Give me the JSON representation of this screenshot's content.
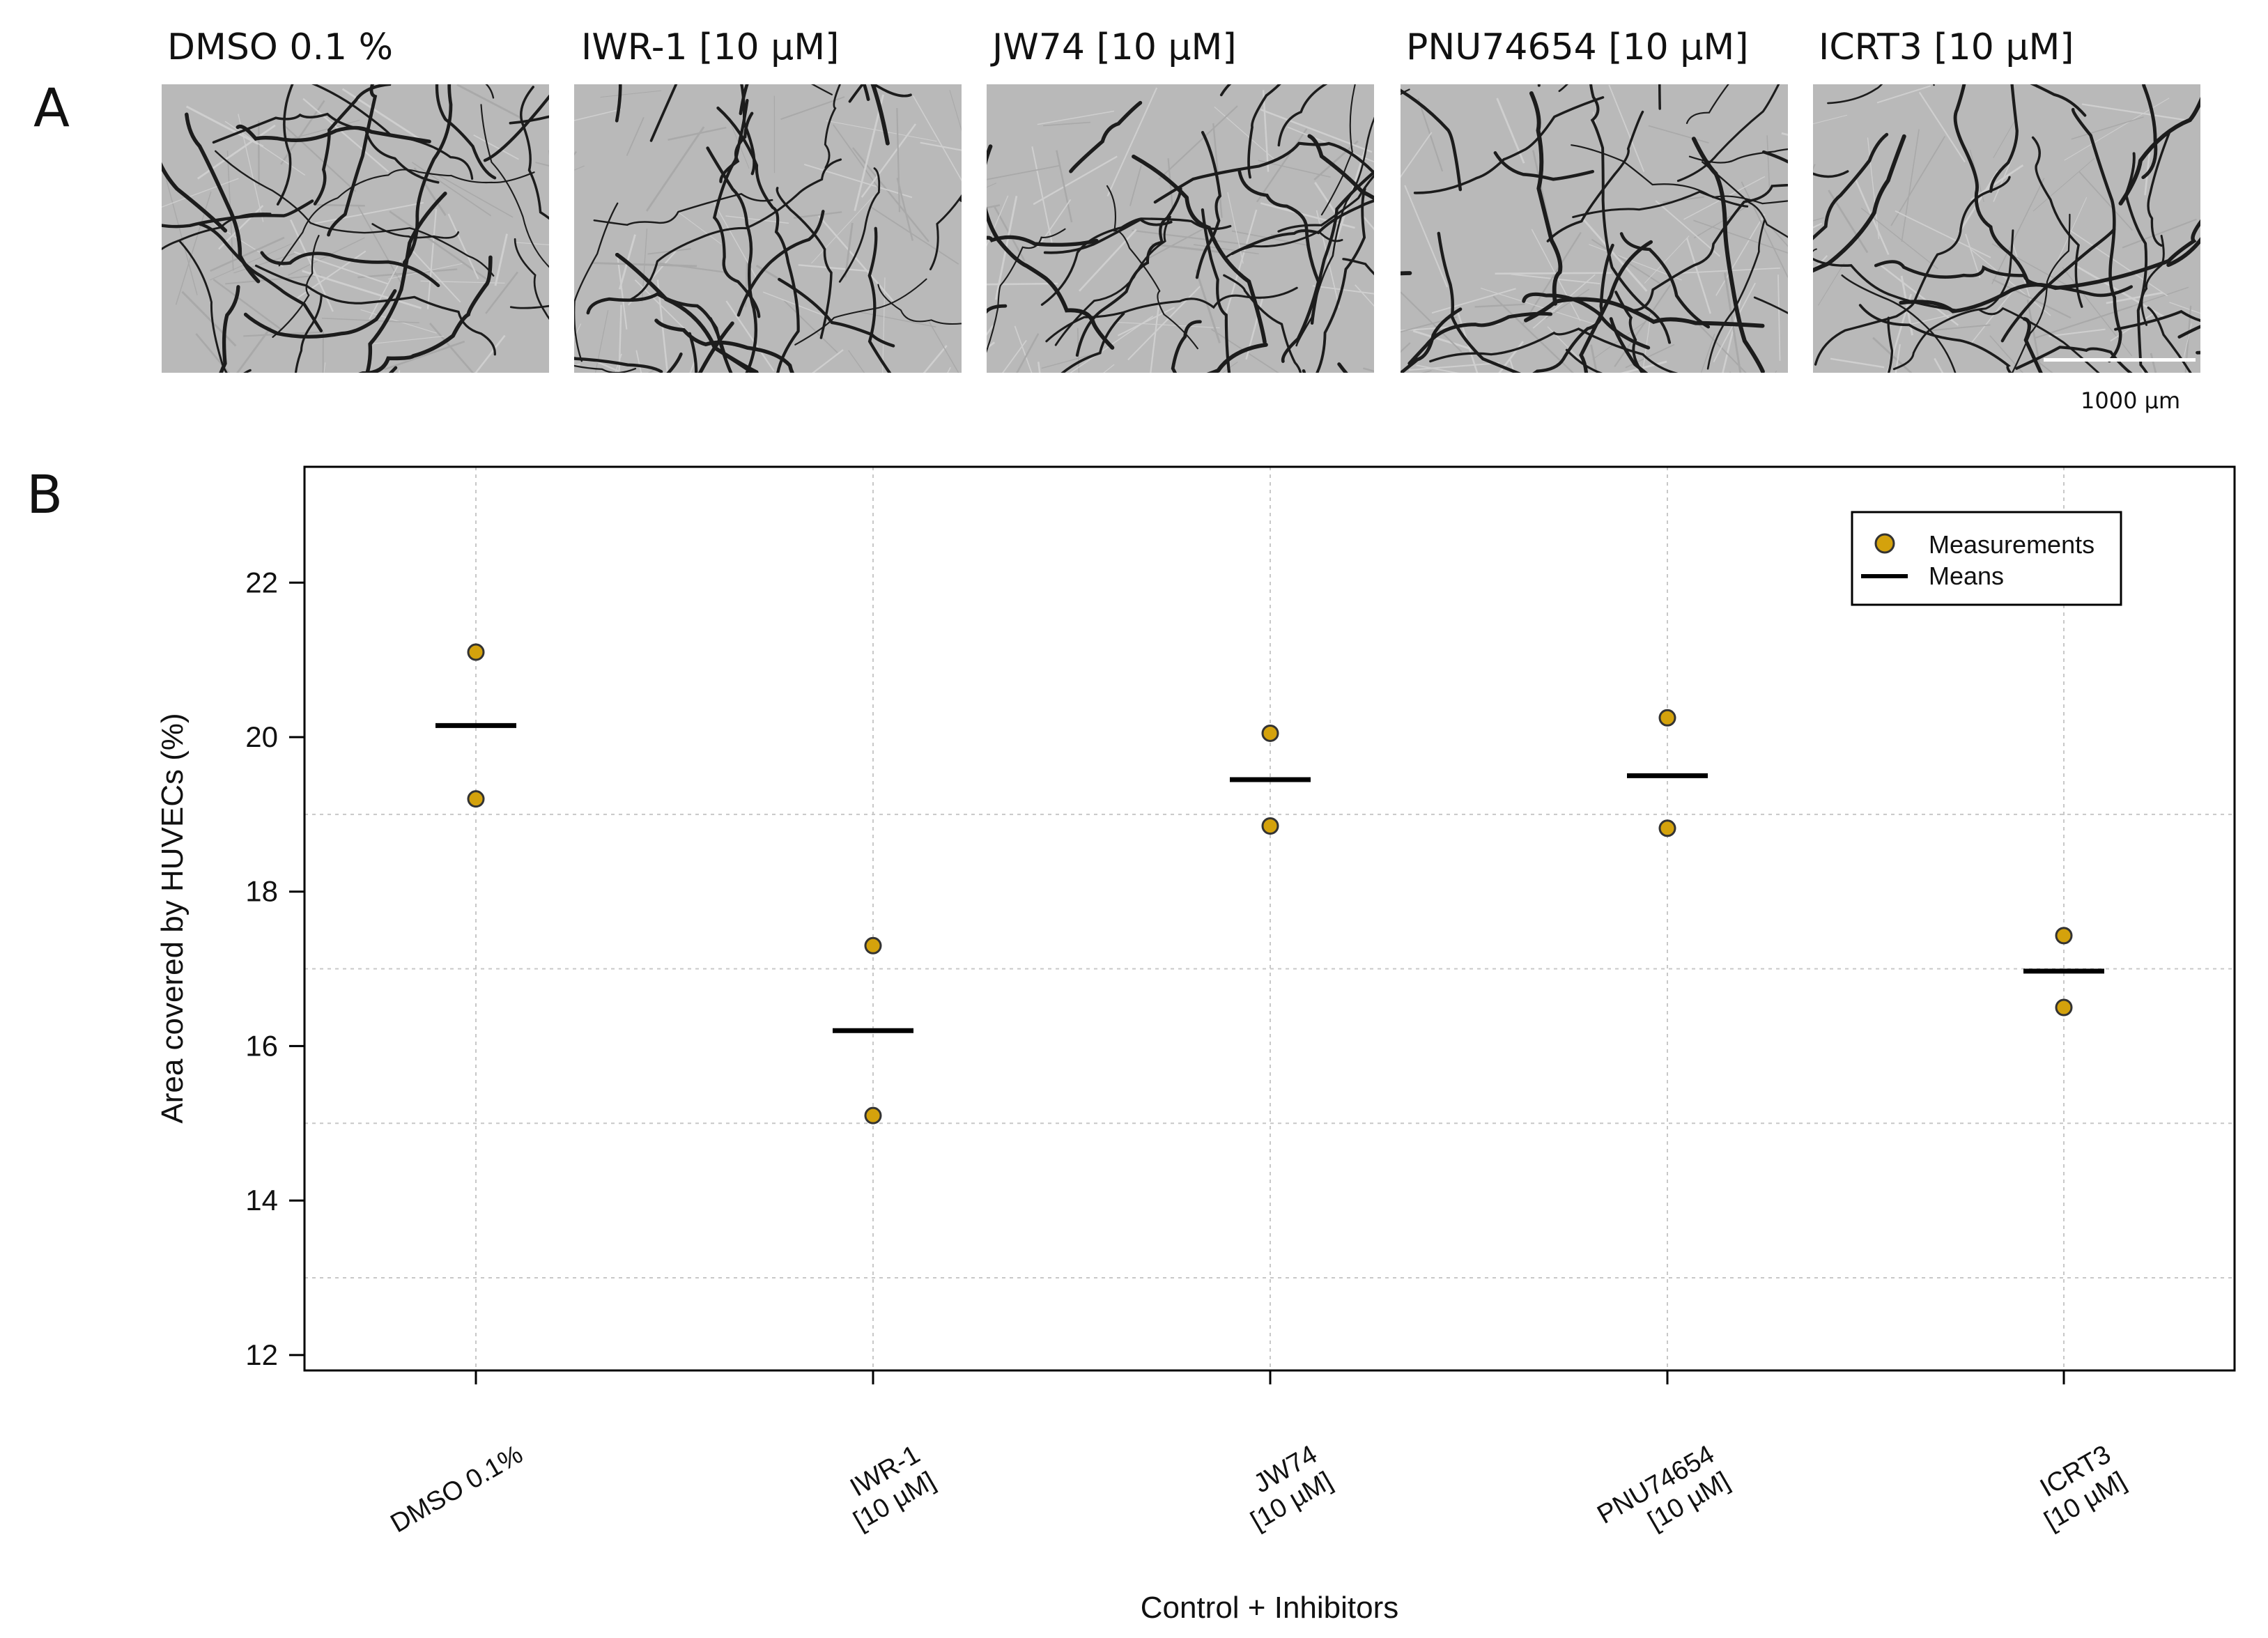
{
  "panel_a": {
    "letter": "A",
    "images": [
      {
        "title": "DMSO 0.1 %"
      },
      {
        "title": "IWR-1 [10 µM]"
      },
      {
        "title": "JW74 [10 µM]"
      },
      {
        "title": "PNU74654 [10 µM]"
      },
      {
        "title": "ICRT3 [10 µM]"
      }
    ],
    "scale_bar_label": "1000 µm"
  },
  "panel_b": {
    "letter": "B"
  },
  "chart_data": {
    "type": "scatter",
    "xlabel": "Control + Inhibitors",
    "ylabel": "Area covered by HUVECs (%)",
    "categories": [
      [
        "DMSO 0.1%"
      ],
      [
        "IWR-1",
        "[10 µM]"
      ],
      [
        "JW74",
        "[10 µM]"
      ],
      [
        "PNU74654",
        "[10 µM]"
      ],
      [
        "ICRT3",
        "[10 µM]"
      ]
    ],
    "measurements": [
      [
        21.1,
        19.2
      ],
      [
        17.3,
        15.1
      ],
      [
        20.05,
        18.85
      ],
      [
        20.25,
        18.82
      ],
      [
        17.43,
        16.5
      ]
    ],
    "means": [
      20.15,
      16.2,
      19.45,
      19.5,
      16.97
    ],
    "ylim": [
      11.8,
      23.5
    ],
    "yticks": [
      12,
      14,
      16,
      18,
      20,
      22
    ],
    "grid": true,
    "legend": {
      "position": "top-right",
      "entries": [
        "Measurements",
        "Means"
      ]
    },
    "colors": {
      "point": "#d4a20c",
      "point_edge": "#333333",
      "mean": "#000000",
      "grid": "#c8c8c8"
    }
  }
}
